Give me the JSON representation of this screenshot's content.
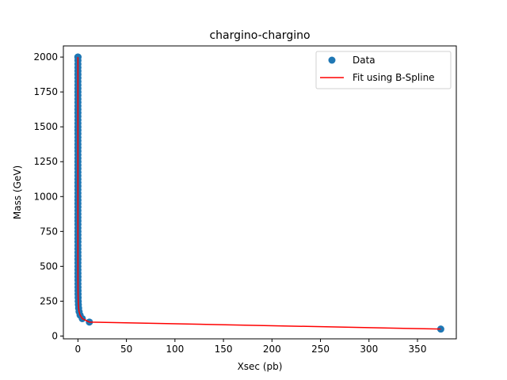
{
  "chart_data": {
    "type": "scatter",
    "title": "chargino-chargino",
    "xlabel": "Xsec (pb)",
    "ylabel": "Mass (GeV)",
    "xlim": [
      -15,
      390
    ],
    "ylim": [
      -20,
      2080
    ],
    "xticks": [
      0,
      50,
      100,
      150,
      200,
      250,
      300,
      350
    ],
    "yticks": [
      0,
      250,
      500,
      750,
      1000,
      1250,
      1500,
      1750,
      2000
    ],
    "grid": false,
    "legend": {
      "position": "top-right",
      "entries": [
        {
          "label": "Data",
          "kind": "marker",
          "color": "#1f77b4"
        },
        {
          "label": "Fit using B-Spline",
          "kind": "line",
          "color": "#ff0000"
        }
      ]
    },
    "series": [
      {
        "name": "Data",
        "kind": "scatter",
        "color": "#1f77b4",
        "x": [
          374,
          11.8,
          4.5,
          2.2,
          1.2,
          0.72,
          0.46,
          0.31,
          0.21,
          0.15,
          0.11,
          0.082,
          0.062,
          0.047,
          0.036,
          0.028,
          0.022,
          0.017,
          0.013,
          0.011,
          0.0085,
          0.0068,
          0.0055,
          0.0044,
          0.0036,
          0.0029,
          0.0024,
          0.002,
          0.0016,
          0.0013,
          0.0011,
          0.0009,
          0.00075,
          0.00062,
          0.00052,
          0.00043,
          0.00036,
          0.0003,
          0.00025,
          0.00021,
          0.00018,
          0.00015,
          0.00013,
          0.00011,
          9.2e-05,
          7.8e-05,
          6.6e-05,
          5.6e-05,
          4.7e-05,
          4e-05,
          3.4e-05,
          2.9e-05,
          2.5e-05,
          2.1e-05,
          1.8e-05,
          1.6e-05,
          1.4e-05,
          1.2e-05,
          1e-05,
          8.8e-06,
          7.6e-06,
          6.5e-06,
          5.6e-06,
          4.8e-06,
          4.2e-06,
          3.6e-06,
          3.1e-06,
          2.7e-06,
          2.3e-06,
          2e-06,
          1.7e-06,
          1.5e-06,
          1.3e-06,
          1.1e-06,
          9.7e-07,
          8.4e-07,
          7.3e-07,
          6.3e-07,
          5.5e-07,
          4.8e-07
        ],
        "y": [
          50,
          100,
          125,
          150,
          175,
          200,
          225,
          250,
          275,
          300,
          325,
          350,
          375,
          400,
          425,
          450,
          475,
          500,
          525,
          550,
          575,
          600,
          625,
          650,
          675,
          700,
          725,
          750,
          775,
          800,
          825,
          850,
          875,
          900,
          925,
          950,
          975,
          1000,
          1025,
          1050,
          1075,
          1100,
          1125,
          1150,
          1175,
          1200,
          1225,
          1250,
          1275,
          1300,
          1325,
          1350,
          1375,
          1400,
          1425,
          1450,
          1475,
          1500,
          1525,
          1550,
          1575,
          1600,
          1625,
          1650,
          1675,
          1700,
          1725,
          1750,
          1775,
          1800,
          1825,
          1850,
          1875,
          1900,
          1925,
          1950,
          1975,
          2000,
          2000,
          2000
        ]
      },
      {
        "name": "Fit using B-Spline",
        "kind": "line",
        "color": "#ff0000",
        "x": [
          374,
          11.8,
          4.5,
          2.2,
          1.2,
          0.72,
          0.46,
          0.31,
          0.21,
          0.15,
          0.11,
          0.082,
          0.062,
          0.047,
          0.036,
          0.028,
          0.022,
          0.017,
          0.013,
          0.011,
          0.0085,
          0.0068,
          0.0055,
          0.0044,
          0.0036,
          0.0029,
          0.0024,
          0.002,
          0.0016,
          0.0013,
          0.0011,
          0.0009,
          0.00075,
          0.00062,
          0.00052,
          0.00043,
          0.00036,
          0.0003,
          0.00025,
          0.00021,
          0.00018,
          0.00015,
          0.00013,
          0.00011,
          9.2e-05,
          7.8e-05,
          6.6e-05,
          5.6e-05,
          4.7e-05,
          4e-05,
          3.4e-05,
          2.9e-05,
          2.5e-05,
          2.1e-05,
          1.8e-05,
          1.6e-05,
          1.4e-05,
          1.2e-05,
          1e-05,
          8.8e-06,
          7.6e-06,
          6.5e-06,
          5.6e-06,
          4.8e-06,
          4.2e-06,
          3.6e-06,
          3.1e-06,
          2.7e-06,
          2.3e-06,
          2e-06,
          1.7e-06,
          1.5e-06,
          1.3e-06,
          1.1e-06,
          9.7e-07,
          8.4e-07,
          7.3e-07,
          6.3e-07
        ],
        "y": [
          50,
          100,
          125,
          150,
          175,
          200,
          225,
          250,
          275,
          300,
          325,
          350,
          375,
          400,
          425,
          450,
          475,
          500,
          525,
          550,
          575,
          600,
          625,
          650,
          675,
          700,
          725,
          750,
          775,
          800,
          825,
          850,
          875,
          900,
          925,
          950,
          975,
          1000,
          1025,
          1050,
          1075,
          1100,
          1125,
          1150,
          1175,
          1200,
          1225,
          1250,
          1275,
          1300,
          1325,
          1350,
          1375,
          1400,
          1425,
          1450,
          1475,
          1500,
          1525,
          1550,
          1575,
          1600,
          1625,
          1650,
          1675,
          1700,
          1725,
          1750,
          1775,
          1800,
          1825,
          1850,
          1875,
          1900,
          1925,
          1950,
          1975,
          2000
        ]
      }
    ]
  }
}
